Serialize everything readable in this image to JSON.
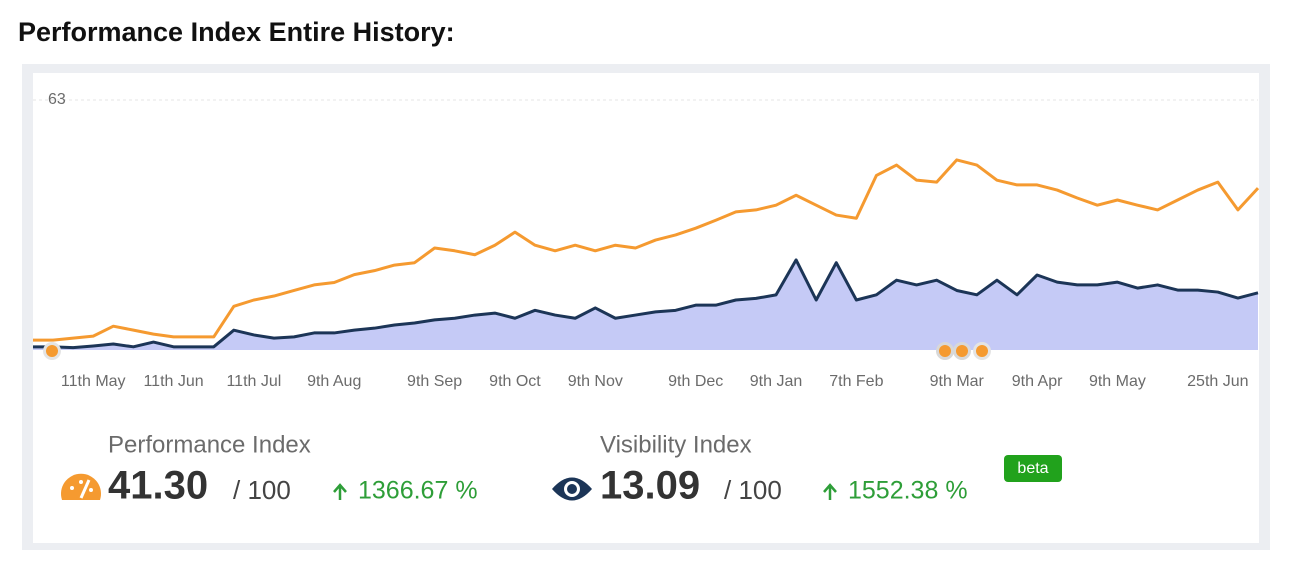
{
  "heading": "Performance Index Entire History:",
  "chart_data": {
    "type": "line",
    "categories": [
      null,
      null,
      null,
      "11th May",
      null,
      null,
      null,
      "11th Jun",
      null,
      null,
      null,
      "11th Jul",
      null,
      null,
      null,
      "9th Aug",
      null,
      null,
      null,
      null,
      "9th Sep",
      null,
      null,
      null,
      "9th Oct",
      null,
      null,
      null,
      "9th Nov",
      null,
      null,
      null,
      null,
      "9th Dec",
      null,
      null,
      null,
      "9th Jan",
      null,
      null,
      null,
      "7th Feb",
      null,
      null,
      null,
      null,
      "9th Mar",
      null,
      null,
      null,
      "9th Apr",
      null,
      null,
      null,
      "9th May",
      null,
      null,
      null,
      null,
      "25th Jun",
      null,
      null
    ],
    "series": [
      {
        "name": "Performance Index",
        "color": "#f59a30",
        "values": [
          2.5,
          2.5,
          3,
          3.5,
          6,
          5,
          4,
          3.3,
          3.3,
          3.3,
          11,
          12.6,
          13.6,
          15,
          16.4,
          17,
          19,
          20,
          21.4,
          22,
          25.7,
          25,
          24,
          26.4,
          29.7,
          26.4,
          25,
          26.4,
          25,
          26.4,
          25.7,
          27.7,
          29,
          30.7,
          32.7,
          34.8,
          35.3,
          36.5,
          39,
          36.5,
          34,
          33.2,
          44,
          46.6,
          42.8,
          42.3,
          47.9,
          46.6,
          42.8,
          41.6,
          41.6,
          40.3,
          38.3,
          36.5,
          37.8,
          36.5,
          35.3,
          37.8,
          40.3,
          42.3,
          35.3,
          40.8
        ]
      },
      {
        "name": "Visibility Index",
        "color": "#1c3557",
        "area_color": "#c5caf6",
        "values": [
          0.8,
          0.8,
          0.6,
          1,
          1.5,
          0.8,
          2,
          0.8,
          0.8,
          0.8,
          5,
          3.8,
          3,
          3.3,
          4.3,
          4.3,
          5,
          5.5,
          6.3,
          6.8,
          7.6,
          8,
          8.8,
          9.3,
          8,
          10,
          8.8,
          8,
          10.6,
          8,
          8.8,
          9.6,
          10,
          11.3,
          11.3,
          12.6,
          13,
          13.9,
          22.7,
          12.6,
          22,
          12.6,
          13.9,
          17.6,
          16.4,
          17.6,
          15,
          13.9,
          17.6,
          13.9,
          18.9,
          17.1,
          16.4,
          16.4,
          17.1,
          15.6,
          16.4,
          15.1,
          15.1,
          14.6,
          13.1,
          14.4
        ]
      }
    ],
    "ylim": [
      0,
      63
    ],
    "yticks": [
      63
    ],
    "grid": true
  },
  "stats": [
    {
      "value": "41.30",
      "max": "/ 100",
      "change": "1366.67 %"
    },
    {
      "value": "13.09",
      "max": "/ 100",
      "change": "1552.38 %",
      "badge": "beta"
    }
  ]
}
